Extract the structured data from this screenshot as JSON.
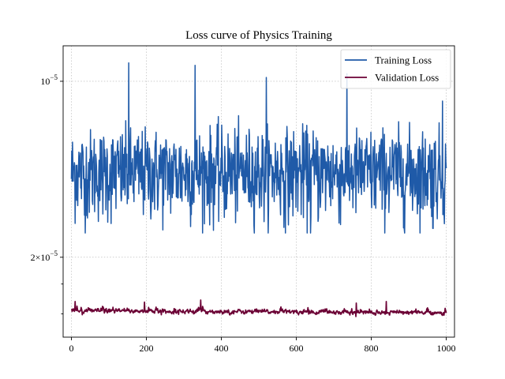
{
  "chart_data": {
    "type": "line",
    "title": "Loss curve of Physics Training",
    "xlabel": "",
    "ylabel": "",
    "yscale": "log",
    "xlim": [
      -22,
      1022
    ],
    "ylim": [
      7.3e-06,
      2.3e-05
    ],
    "grid": true,
    "legend_position": "top-right",
    "x_ticks": [
      0,
      200,
      400,
      600,
      800,
      1000
    ],
    "x_tick_labels": [
      "0",
      "200",
      "400",
      "600",
      "800",
      "1000"
    ],
    "y_major_ticks": [
      1e-05,
      2e-05
    ],
    "y_tick_labels": [
      {
        "mantissa": "2",
        "times": "×",
        "base": "10",
        "exp": "−5"
      },
      {
        "mantissa": "",
        "times": "",
        "base": "10",
        "exp": "−5"
      }
    ],
    "y_minor_ticks": [
      8e-06,
      9e-06
    ],
    "x_range": [
      0,
      1000
    ],
    "series": [
      {
        "name": "Training Loss",
        "color": "#1f5aa8",
        "mean": 1.4e-05,
        "spread": 1.25e-06,
        "min": 1.1e-05,
        "max": 2.15e-05,
        "spikes": [
          {
            "x": 153,
            "y": 2.15e-05
          },
          {
            "x": 330,
            "y": 2.13e-05
          },
          {
            "x": 735,
            "y": 2.06e-05
          },
          {
            "x": 520,
            "y": 2.03e-05
          },
          {
            "x": 990,
            "y": 1.85e-05
          },
          {
            "x": 638,
            "y": 1.1e-05
          },
          {
            "x": 965,
            "y": 1.12e-05
          },
          {
            "x": 35,
            "y": 1.18e-05
          },
          {
            "x": 408,
            "y": 1.17e-05
          }
        ]
      },
      {
        "name": "Validation Loss",
        "color": "#6b0034",
        "mean": 8.1e-06,
        "spread": 6e-08,
        "min": 7.85e-06,
        "max": 8.5e-06,
        "spikes": [
          {
            "x": 345,
            "y": 8.45e-06
          },
          {
            "x": 10,
            "y": 8.4e-06
          },
          {
            "x": 840,
            "y": 8.4e-06
          },
          {
            "x": 195,
            "y": 8.38e-06
          },
          {
            "x": 760,
            "y": 8.35e-06
          }
        ]
      }
    ]
  }
}
